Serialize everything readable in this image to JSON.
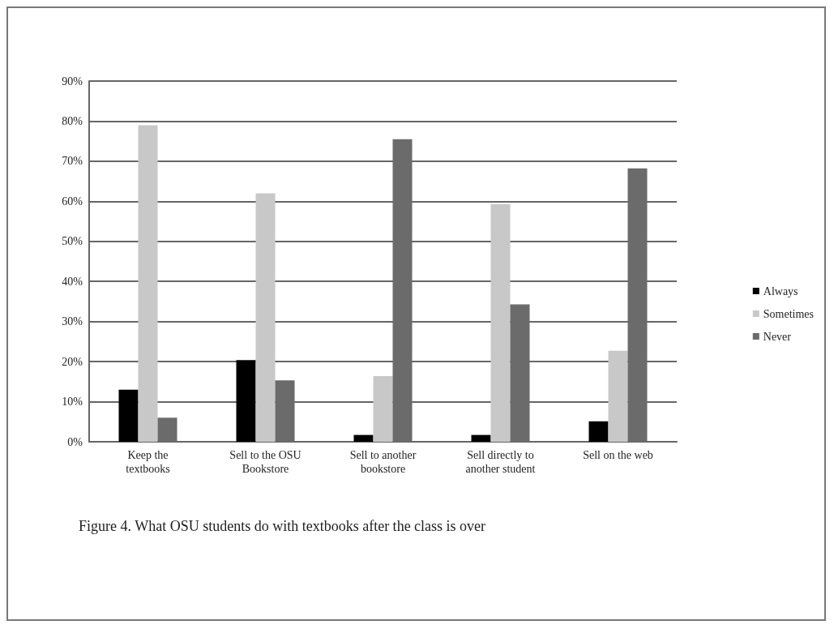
{
  "chart_data": {
    "type": "bar",
    "title": "Figure 4. What OSU students do with textbooks after the class is over",
    "categories": [
      "Keep the\ntextbooks",
      "Sell to the OSU\nBookstore",
      "Sell to another\nbookstore",
      "Sell directly to\nanother student",
      "Sell on the web"
    ],
    "series": [
      {
        "name": "Always",
        "color": "#000000",
        "values": [
          13,
          20.4,
          1.7,
          1.7,
          5.1
        ]
      },
      {
        "name": "Sometimes",
        "color": "#c8c8c8",
        "values": [
          79,
          62,
          16.4,
          59.3,
          22.7
        ]
      },
      {
        "name": "Never",
        "color": "#6b6b6b",
        "values": [
          6,
          15.3,
          75.5,
          34.3,
          68.2
        ]
      }
    ],
    "ylim": [
      0,
      90
    ],
    "yticks": [
      {
        "value": 0,
        "label": "0%"
      },
      {
        "value": 10,
        "label": "10%"
      },
      {
        "value": 20,
        "label": "20%"
      },
      {
        "value": 30,
        "label": "30%"
      },
      {
        "value": 40,
        "label": "40%"
      },
      {
        "value": 50,
        "label": "50%"
      },
      {
        "value": 60,
        "label": "60%"
      },
      {
        "value": 70,
        "label": "70%"
      },
      {
        "value": 80,
        "label": "80%"
      },
      {
        "value": 90,
        "label": "90%"
      }
    ],
    "grid": "y",
    "legend": "right"
  }
}
